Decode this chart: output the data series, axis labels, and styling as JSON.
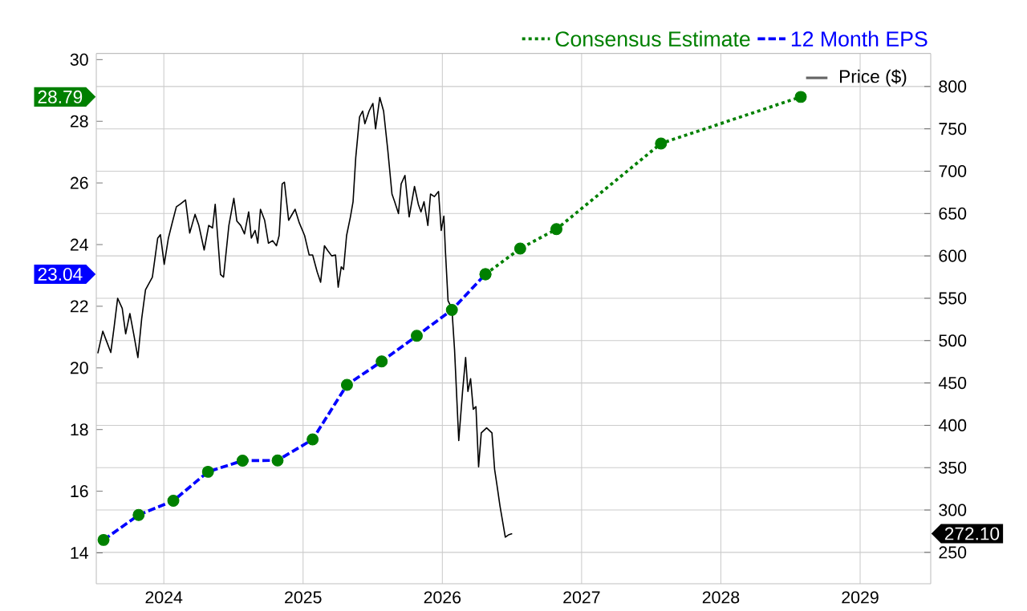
{
  "chart_data": {
    "type": "line",
    "legend": "top right",
    "grid": true,
    "marker": "circle",
    "xlim": [
      "2023-07-08",
      "2029-07-05"
    ],
    "xticks": [
      "2024",
      "2025",
      "2026",
      "2027",
      "2028",
      "2029"
    ],
    "ylim": [
      13,
      30.2
    ],
    "yticks": [
      14,
      16,
      18,
      20,
      22,
      24,
      26,
      28,
      30
    ],
    "y2lim": [
      213,
      839
    ],
    "y2ticks": [
      250,
      300,
      350,
      400,
      450,
      500,
      550,
      600,
      650,
      700,
      750,
      800
    ],
    "series": [
      {
        "name": "Consensus Estimate",
        "color": "#008000",
        "line_style": "dotted",
        "x": [
          "2026-04-24",
          "2026-07-24",
          "2026-10-27",
          "2027-07-28",
          "2028-07-29"
        ],
        "values": [
          23.04,
          23.87,
          24.5,
          27.28,
          28.79
        ]
      },
      {
        "name": "12 Month EPS",
        "color": "#0000ff",
        "line_style": "dashed",
        "colors": [
          "#008000",
          "#008000",
          "#008000",
          "#008000",
          "#008000",
          "#008000",
          "#008000",
          "#008000",
          "#008000",
          "#008000",
          "#008000",
          "#008000"
        ],
        "x": [
          "2023-07-27",
          "2023-10-27",
          "2024-01-26",
          "2024-04-26",
          "2024-07-26",
          "2024-10-26",
          "2025-01-26",
          "2025-04-26",
          "2025-07-26",
          "2025-10-26",
          "2026-01-26",
          "2026-04-24"
        ],
        "values": [
          14.42,
          15.23,
          15.69,
          16.63,
          16.99,
          17.0,
          17.68,
          19.45,
          20.21,
          21.04,
          21.88,
          23.04
        ]
      },
      {
        "name": "Price ($)",
        "color": "#000000",
        "axis": "y2",
        "line_style": "solid",
        "marker": "none",
        "x": [
          "2023-07-12",
          "2023-07-25",
          "2023-08-05",
          "2023-08-15",
          "2023-08-24",
          "2023-09-02",
          "2023-09-14",
          "2023-09-23",
          "2023-10-04",
          "2023-10-14",
          "2023-10-25",
          "2023-11-04",
          "2023-11-14",
          "2023-12-02",
          "2023-12-16",
          "2023-12-23",
          "2024-01-02",
          "2024-01-13",
          "2024-01-23",
          "2024-02-03",
          "2024-02-13",
          "2024-02-27",
          "2024-03-09",
          "2024-03-23",
          "2024-04-02",
          "2024-04-16",
          "2024-04-28",
          "2024-05-08",
          "2024-05-15",
          "2024-05-29",
          "2024-06-06",
          "2024-06-20",
          "2024-07-03",
          "2024-07-11",
          "2024-07-21",
          "2024-07-31",
          "2024-08-11",
          "2024-08-18",
          "2024-08-28",
          "2024-09-04",
          "2024-09-11",
          "2024-09-22",
          "2024-10-02",
          "2024-10-13",
          "2024-10-23",
          "2024-10-30",
          "2024-11-07",
          "2024-11-13",
          "2024-11-24",
          "2024-12-11",
          "2024-12-22",
          "2025-01-05",
          "2025-01-17",
          "2025-01-26",
          "2025-02-07",
          "2025-02-16",
          "2025-02-26",
          "2025-03-07",
          "2025-03-17",
          "2025-03-27",
          "2025-04-03",
          "2025-04-11",
          "2025-04-17",
          "2025-04-25",
          "2025-05-05",
          "2025-05-12",
          "2025-05-19",
          "2025-05-29",
          "2025-06-06",
          "2025-06-12",
          "2025-06-23",
          "2025-07-03",
          "2025-07-10",
          "2025-07-21",
          "2025-07-31",
          "2025-08-11",
          "2025-08-22",
          "2025-08-29",
          "2025-09-08",
          "2025-09-15",
          "2025-09-25",
          "2025-10-06",
          "2025-10-13",
          "2025-10-20",
          "2025-10-30",
          "2025-11-06",
          "2025-11-14",
          "2025-11-24",
          "2025-12-01",
          "2025-12-11",
          "2025-12-22",
          "2025-12-29",
          "2026-01-05",
          "2026-01-09",
          "2026-01-16",
          "2026-01-26",
          "2026-02-02",
          "2026-02-13",
          "2026-02-23",
          "2026-03-03",
          "2026-03-09",
          "2026-03-16",
          "2026-03-23",
          "2026-03-30",
          "2026-04-06",
          "2026-04-13",
          "2026-04-27",
          "2026-05-11",
          "2026-05-18",
          "2026-05-25",
          "2026-06-01",
          "2026-06-15",
          "2026-06-25",
          "2026-07-03"
        ],
        "values": [
          485,
          511,
          498,
          486,
          517,
          550,
          538,
          508,
          532,
          508,
          480,
          526,
          560,
          575,
          621,
          625,
          590,
          621,
          639,
          658,
          661,
          666,
          627,
          649,
          636,
          607,
          636,
          633,
          661,
          578,
          575,
          636,
          668,
          641,
          636,
          626,
          652,
          621,
          630,
          615,
          655,
          642,
          615,
          618,
          612,
          624,
          685,
          687,
          642,
          655,
          639,
          624,
          601,
          601,
          581,
          569,
          612,
          606,
          600,
          601,
          563,
          587,
          584,
          624,
          646,
          664,
          716,
          764,
          771,
          756,
          771,
          780,
          750,
          787,
          771,
          725,
          673,
          664,
          650,
          685,
          695,
          646,
          664,
          682,
          661,
          652,
          664,
          636,
          673,
          670,
          676,
          630,
          647,
          606,
          547,
          538,
          489,
          382,
          440,
          480,
          440,
          455,
          419,
          422,
          351,
          391,
          397,
          391,
          348,
          327,
          305,
          268,
          271,
          272.1
        ]
      }
    ],
    "annotations": [
      "28.79",
      "23.04",
      "272.10"
    ]
  }
}
